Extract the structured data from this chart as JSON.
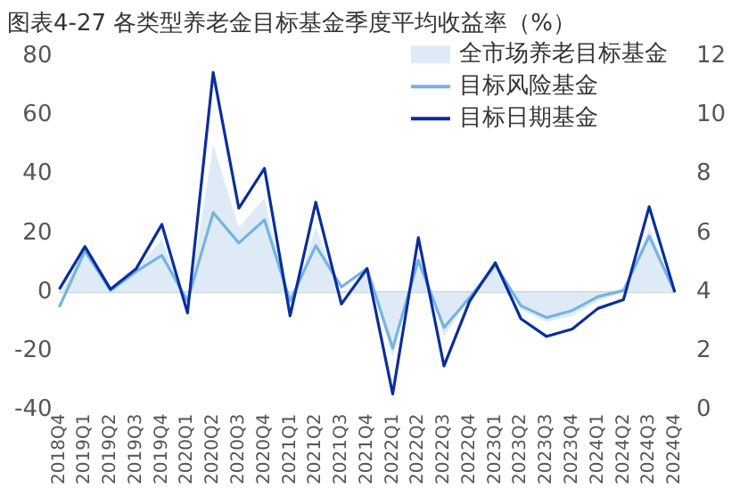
{
  "chart_data": {
    "type": "line",
    "title": "图表4-27 各类型养老金目标基金季度平均收益率（%）",
    "categories": [
      "2018Q4",
      "2019Q1",
      "2019Q2",
      "2019Q3",
      "2019Q4",
      "2020Q1",
      "2020Q2",
      "2020Q3",
      "2020Q4",
      "2021Q1",
      "2021Q2",
      "2021Q3",
      "2021Q4",
      "2022Q1",
      "2022Q2",
      "2022Q3",
      "2022Q4",
      "2023Q1",
      "2023Q2",
      "2023Q3",
      "2023Q4",
      "2024Q1",
      "2024Q2",
      "2024Q3",
      "2024Q4"
    ],
    "series": [
      {
        "name": "全市场养老目标基金",
        "type": "area",
        "color": "#deebf7",
        "values": [
          -1,
          15,
          1,
          8,
          18,
          -5,
          50,
          22,
          32,
          -6,
          22,
          -1,
          7,
          -22,
          13,
          -15,
          -2,
          9,
          -6,
          -10,
          -8,
          -3,
          0,
          22,
          0
        ]
      },
      {
        "name": "目标风险基金",
        "color": "#74b4e0",
        "values": [
          -5,
          14,
          0.6,
          7,
          12.5,
          -3,
          27,
          16.7,
          24.5,
          -3,
          15.8,
          1.8,
          8,
          -19,
          10.8,
          -12,
          -1.8,
          9.2,
          -4.6,
          -8.6,
          -6.2,
          -1.5,
          0.6,
          19,
          0
        ]
      },
      {
        "name": "目标日期基金",
        "axis": "y2",
        "color": "#0a2d9e",
        "values": [
          4.1,
          5.55,
          4.1,
          4.8,
          6.3,
          3.3,
          11.45,
          6.85,
          8.2,
          3.2,
          7.05,
          3.6,
          4.8,
          0.55,
          5.85,
          1.5,
          3.7,
          5.0,
          3.1,
          2.5,
          2.75,
          3.45,
          3.75,
          6.9,
          4.0
        ]
      }
    ],
    "ylim": [
      -40,
      80
    ],
    "yticks": [
      -40,
      -20,
      0,
      20,
      40,
      60,
      80
    ],
    "y2lim": [
      0,
      12
    ],
    "y2ticks": [
      0,
      2,
      4,
      6,
      8,
      10,
      12
    ],
    "ref_lines": [
      {
        "axis": "y",
        "value": 0,
        "color": "#d0d0d0"
      }
    ],
    "grid": false,
    "legend": "top right",
    "marker": "none",
    "line_style": "solid"
  }
}
